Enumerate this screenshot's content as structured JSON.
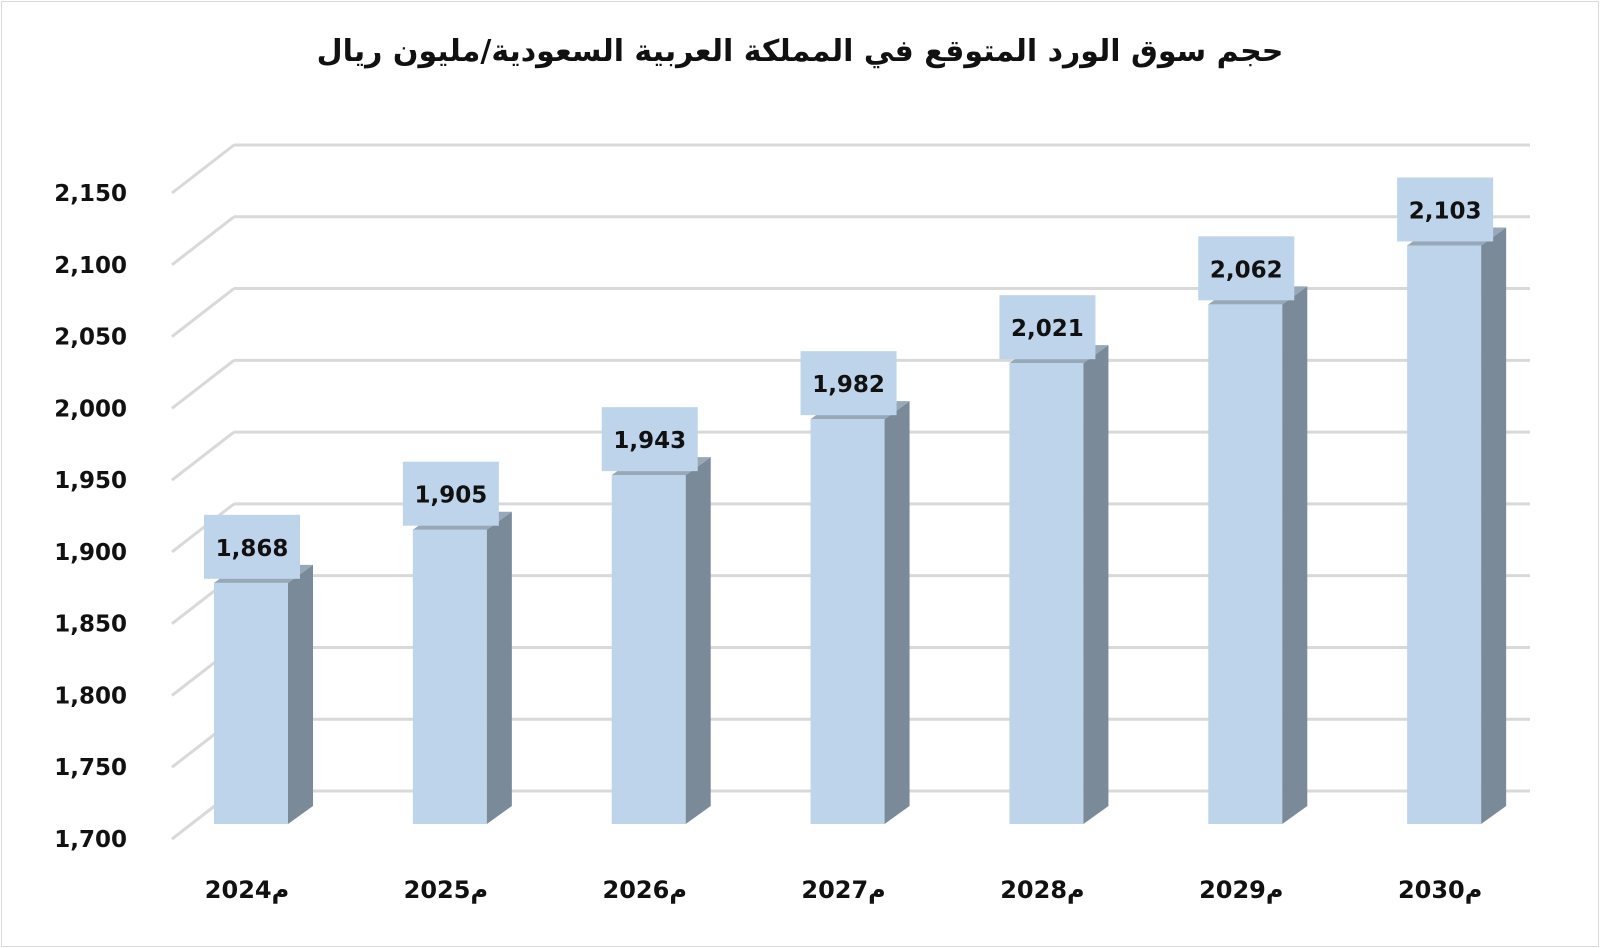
{
  "chart_data": {
    "type": "bar",
    "title": "حجم سوق الورد المتوقع في المملكة العربية السعودية/مليون ريال",
    "xlabel": "",
    "ylabel": "",
    "categories": [
      "2024م",
      "2025م",
      "2026م",
      "2027م",
      "2028م",
      "2029م",
      "2030م"
    ],
    "values": [
      1868,
      1905,
      1943,
      1982,
      2021,
      2062,
      2103
    ],
    "value_labels": [
      "1,868",
      "1,905",
      "1,943",
      "1,982",
      "2,021",
      "2,062",
      "2,103"
    ],
    "ylim": [
      1700,
      2150
    ],
    "yticks": [
      1700,
      1750,
      1800,
      1850,
      1900,
      1950,
      2000,
      2050,
      2100,
      2150
    ],
    "ytick_labels": [
      "1,700",
      "1,750",
      "1,800",
      "1,850",
      "1,900",
      "1,950",
      "2,000",
      "2,050",
      "2,100",
      "2,150"
    ],
    "grid": true,
    "legend": "none",
    "style": "3d-column",
    "colors": {
      "bar_front": "#bdd4ea",
      "bar_side": "#7a8a99",
      "bar_top": "#97a8b8",
      "label_box": "#bdd4ea",
      "grid": "#d9d9d9"
    }
  }
}
